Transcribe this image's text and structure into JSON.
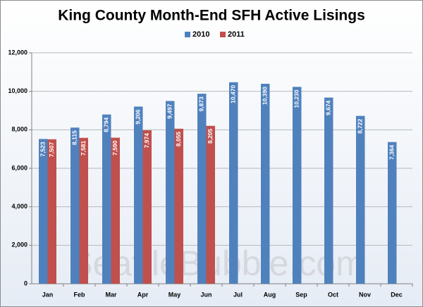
{
  "chart_data": {
    "type": "bar",
    "title": "King County Month-End SFH Active Lisings",
    "watermark": "SeattleBubble.com",
    "categories": [
      "Jan",
      "Feb",
      "Mar",
      "Apr",
      "May",
      "Jun",
      "Jul",
      "Aug",
      "Sep",
      "Oct",
      "Nov",
      "Dec"
    ],
    "series": [
      {
        "name": "2010",
        "color": "#4f81bd",
        "values": [
          7523,
          8115,
          8794,
          9206,
          9497,
          9873,
          10470,
          10390,
          10230,
          9674,
          8722,
          7364
        ],
        "value_labels": [
          "7,523",
          "8,115",
          "8,794",
          "9,206",
          "9,497",
          "9,873",
          "10,470",
          "10,390",
          "10,230",
          "9,674",
          "8,722",
          "7,364"
        ]
      },
      {
        "name": "2011",
        "color": "#c0504d",
        "values": [
          7507,
          7581,
          7590,
          7974,
          8055,
          8205,
          null,
          null,
          null,
          null,
          null,
          null
        ],
        "value_labels": [
          "7,507",
          "7,581",
          "7,590",
          "7,974",
          "8,055",
          "8,205",
          null,
          null,
          null,
          null,
          null,
          null
        ]
      }
    ],
    "ylim": [
      0,
      12000
    ],
    "yticks": [
      0,
      {
        "value": 2000,
        "label": "2,000"
      },
      {
        "value": 4000,
        "label": "4,000"
      },
      {
        "value": 6000,
        "label": "6,000"
      },
      {
        "value": 8000,
        "label": "8,000"
      },
      {
        "value": 10000,
        "label": "10,000"
      },
      {
        "value": 12000,
        "label": "12,000"
      }
    ],
    "grid": true,
    "legend": "top"
  }
}
